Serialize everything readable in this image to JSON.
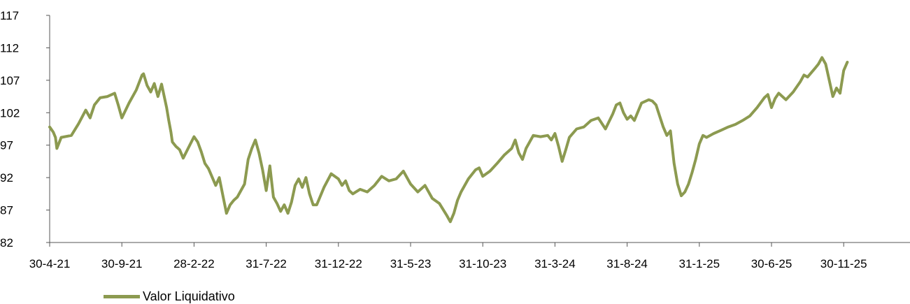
{
  "chart_data": {
    "type": "line",
    "title": "",
    "xlabel": "",
    "ylabel": "",
    "ylim": [
      82,
      117
    ],
    "y_ticks": [
      "117",
      "112",
      "107",
      "102",
      "97",
      "92",
      "87",
      "82"
    ],
    "x_ticks": [
      "30-4-21",
      "30-9-21",
      "28-2-22",
      "31-7-22",
      "31-12-22",
      "31-5-23",
      "31-10-23",
      "31-3-24",
      "31-8-24",
      "31-1-25",
      "30-6-25",
      "30-11-25"
    ],
    "grid": false,
    "legend_position": "bottom-left",
    "series": [
      {
        "name": "Valor Liquidativo",
        "color": "#8c9a50",
        "values": [
          [
            0,
            99.8
          ],
          [
            0.05,
            99.0
          ],
          [
            0.08,
            98.2
          ],
          [
            0.1,
            96.5
          ],
          [
            0.16,
            98.2
          ],
          [
            0.3,
            98.5
          ],
          [
            0.4,
            100.3
          ],
          [
            0.5,
            102.4
          ],
          [
            0.56,
            101.2
          ],
          [
            0.62,
            103.2
          ],
          [
            0.7,
            104.3
          ],
          [
            0.8,
            104.5
          ],
          [
            0.9,
            105.0
          ],
          [
            0.95,
            103.2
          ],
          [
            1.0,
            101.2
          ],
          [
            1.1,
            103.5
          ],
          [
            1.2,
            105.5
          ],
          [
            1.28,
            107.8
          ],
          [
            1.3,
            108.0
          ],
          [
            1.35,
            106.2
          ],
          [
            1.4,
            105.2
          ],
          [
            1.45,
            106.5
          ],
          [
            1.5,
            104.5
          ],
          [
            1.55,
            106.4
          ],
          [
            1.62,
            102.8
          ],
          [
            1.65,
            100.8
          ],
          [
            1.68,
            99.0
          ],
          [
            1.7,
            97.5
          ],
          [
            1.75,
            96.8
          ],
          [
            1.8,
            96.3
          ],
          [
            1.85,
            95.0
          ],
          [
            1.95,
            97.2
          ],
          [
            2.0,
            98.3
          ],
          [
            2.05,
            97.5
          ],
          [
            2.1,
            96.0
          ],
          [
            2.15,
            94.2
          ],
          [
            2.2,
            93.4
          ],
          [
            2.3,
            90.8
          ],
          [
            2.35,
            92.0
          ],
          [
            2.4,
            89.2
          ],
          [
            2.45,
            86.5
          ],
          [
            2.5,
            87.8
          ],
          [
            2.55,
            88.5
          ],
          [
            2.6,
            89.0
          ],
          [
            2.7,
            91.0
          ],
          [
            2.75,
            94.8
          ],
          [
            2.8,
            96.5
          ],
          [
            2.85,
            97.8
          ],
          [
            2.9,
            95.8
          ],
          [
            2.95,
            93.2
          ],
          [
            3.0,
            90.0
          ],
          [
            3.05,
            93.8
          ],
          [
            3.1,
            89.0
          ],
          [
            3.15,
            88.0
          ],
          [
            3.2,
            86.8
          ],
          [
            3.25,
            87.8
          ],
          [
            3.3,
            86.5
          ],
          [
            3.35,
            88.2
          ],
          [
            3.4,
            90.8
          ],
          [
            3.45,
            91.8
          ],
          [
            3.5,
            90.5
          ],
          [
            3.55,
            92.0
          ],
          [
            3.6,
            89.5
          ],
          [
            3.65,
            87.8
          ],
          [
            3.7,
            87.8
          ],
          [
            3.8,
            90.5
          ],
          [
            3.9,
            92.6
          ],
          [
            4.0,
            91.8
          ],
          [
            4.05,
            90.8
          ],
          [
            4.1,
            91.5
          ],
          [
            4.15,
            90.0
          ],
          [
            4.2,
            89.5
          ],
          [
            4.3,
            90.2
          ],
          [
            4.4,
            89.8
          ],
          [
            4.5,
            90.8
          ],
          [
            4.6,
            92.2
          ],
          [
            4.7,
            91.5
          ],
          [
            4.8,
            91.8
          ],
          [
            4.9,
            93.0
          ],
          [
            5.0,
            91.0
          ],
          [
            5.1,
            89.8
          ],
          [
            5.2,
            90.8
          ],
          [
            5.3,
            88.8
          ],
          [
            5.4,
            88.0
          ],
          [
            5.5,
            86.2
          ],
          [
            5.55,
            85.2
          ],
          [
            5.6,
            86.5
          ],
          [
            5.65,
            88.5
          ],
          [
            5.7,
            89.8
          ],
          [
            5.8,
            91.8
          ],
          [
            5.9,
            93.2
          ],
          [
            5.95,
            93.5
          ],
          [
            6.0,
            92.2
          ],
          [
            6.1,
            93.0
          ],
          [
            6.2,
            94.2
          ],
          [
            6.3,
            95.5
          ],
          [
            6.4,
            96.5
          ],
          [
            6.45,
            97.8
          ],
          [
            6.5,
            95.8
          ],
          [
            6.55,
            94.8
          ],
          [
            6.6,
            96.5
          ],
          [
            6.7,
            98.5
          ],
          [
            6.8,
            98.3
          ],
          [
            6.9,
            98.5
          ],
          [
            6.95,
            97.8
          ],
          [
            7.0,
            98.8
          ],
          [
            7.05,
            96.8
          ],
          [
            7.1,
            94.5
          ],
          [
            7.15,
            96.3
          ],
          [
            7.2,
            98.2
          ],
          [
            7.3,
            99.5
          ],
          [
            7.4,
            99.8
          ],
          [
            7.5,
            100.8
          ],
          [
            7.6,
            101.2
          ],
          [
            7.7,
            99.5
          ],
          [
            7.8,
            101.8
          ],
          [
            7.85,
            103.2
          ],
          [
            7.9,
            103.5
          ],
          [
            7.95,
            102.0
          ],
          [
            8.0,
            101.0
          ],
          [
            8.05,
            101.5
          ],
          [
            8.1,
            100.8
          ],
          [
            8.2,
            103.5
          ],
          [
            8.3,
            104.0
          ],
          [
            8.35,
            103.8
          ],
          [
            8.4,
            103.2
          ],
          [
            8.45,
            101.5
          ],
          [
            8.5,
            99.8
          ],
          [
            8.55,
            98.5
          ],
          [
            8.6,
            99.2
          ],
          [
            8.65,
            94.2
          ],
          [
            8.7,
            91.0
          ],
          [
            8.75,
            89.2
          ],
          [
            8.8,
            89.8
          ],
          [
            8.85,
            91.0
          ],
          [
            8.9,
            92.8
          ],
          [
            8.95,
            94.8
          ],
          [
            9.0,
            97.2
          ],
          [
            9.05,
            98.5
          ],
          [
            9.1,
            98.2
          ],
          [
            9.2,
            98.8
          ],
          [
            9.3,
            99.3
          ],
          [
            9.4,
            99.8
          ],
          [
            9.5,
            100.2
          ],
          [
            9.6,
            100.8
          ],
          [
            9.7,
            101.5
          ],
          [
            9.8,
            102.8
          ],
          [
            9.9,
            104.3
          ],
          [
            9.95,
            104.8
          ],
          [
            10.0,
            102.8
          ],
          [
            10.05,
            104.2
          ],
          [
            10.1,
            105.0
          ],
          [
            10.2,
            104.0
          ],
          [
            10.3,
            105.2
          ],
          [
            10.4,
            106.8
          ],
          [
            10.45,
            107.8
          ],
          [
            10.5,
            107.5
          ],
          [
            10.6,
            108.8
          ],
          [
            10.65,
            109.5
          ],
          [
            10.7,
            110.5
          ],
          [
            10.75,
            109.5
          ],
          [
            10.8,
            107.0
          ],
          [
            10.85,
            104.5
          ],
          [
            10.9,
            105.8
          ],
          [
            10.95,
            105.0
          ],
          [
            11.0,
            108.5
          ],
          [
            11.05,
            109.8
          ]
        ]
      }
    ]
  }
}
